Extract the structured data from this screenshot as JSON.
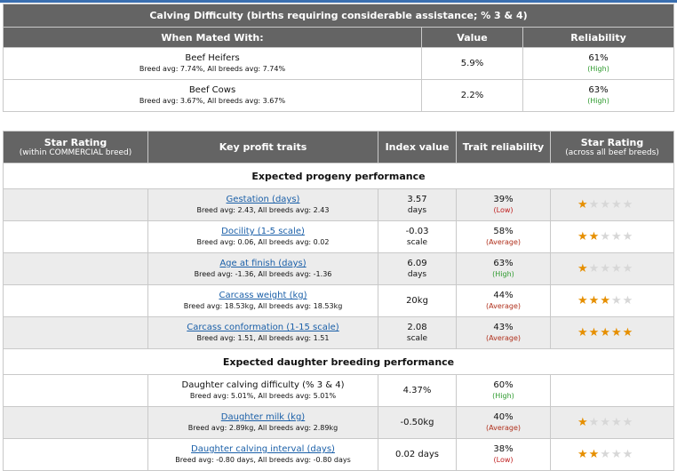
{
  "calving": {
    "title": "Calving Difficulty (births requiring considerable assistance; % 3 & 4)",
    "col_mated": "When Mated With:",
    "col_value": "Value",
    "col_reliability": "Reliability",
    "rows": [
      {
        "name": "Beef Heifers",
        "sub": "Breed avg: 7.74%, All breeds avg: 7.74%",
        "value": "5.9%",
        "rel": "61%",
        "rel_q": "(High)"
      },
      {
        "name": "Beef Cows",
        "sub": "Breed avg: 3.67%, All breeds avg: 3.67%",
        "value": "2.2%",
        "rel": "63%",
        "rel_q": "(High)"
      }
    ]
  },
  "traits": {
    "h_star": "Star Rating",
    "h_star_sub": "(within COMMERCIAL breed)",
    "h_key": "Key profit traits",
    "h_index": "Index value",
    "h_trait_rel": "Trait reliability",
    "h_star2": "Star Rating",
    "h_star2_sub": "(across all beef breeds)",
    "section_progeny": "Expected progeny performance",
    "section_daughter": "Expected daughter breeding performance",
    "rows": [
      {
        "name": "Gestation (days)",
        "sub": "Breed avg: 2.43, All breeds avg: 2.43",
        "val": "3.57",
        "unit": "days",
        "rel": "39%",
        "rel_q": "(Low)",
        "stars": 1
      },
      {
        "name": "Docility (1-5 scale)",
        "sub": "Breed avg: 0.06, All breeds avg: 0.02",
        "val": "-0.03",
        "unit": "scale",
        "rel": "58%",
        "rel_q": "(Average)",
        "stars": 2
      },
      {
        "name": "Age at finish (days)",
        "sub": "Breed avg: -1.36, All breeds avg: -1.36",
        "val": "6.09",
        "unit": "days",
        "rel": "63%",
        "rel_q": "(High)",
        "stars": 1
      },
      {
        "name": "Carcass weight (kg)",
        "sub": "Breed avg: 18.53kg, All breeds avg: 18.53kg",
        "val": "20kg",
        "unit": "",
        "rel": "44%",
        "rel_q": "(Average)",
        "stars": 3
      },
      {
        "name": "Carcass conformation (1-15 scale)",
        "sub": "Breed avg: 1.51, All breeds avg: 1.51",
        "val": "2.08",
        "unit": "scale",
        "rel": "43%",
        "rel_q": "(Average)",
        "stars": 5
      },
      {
        "name": "Daughter calving difficulty (% 3 & 4)",
        "sub": "Breed avg: 5.01%, All breeds avg: 5.01%",
        "val": "4.37%",
        "unit": "",
        "rel": "60%",
        "rel_q": "(High)",
        "stars": 0
      },
      {
        "name": "Daughter milk (kg)",
        "sub": "Breed avg: 2.89kg, All breeds avg: 2.89kg",
        "val": "-0.50kg",
        "unit": "",
        "rel": "40%",
        "rel_q": "(Average)",
        "stars": 1
      },
      {
        "name": "Daughter calving interval (days)",
        "sub": "Breed avg: -0.80 days, All breeds avg: -0.80 days",
        "val": "0.02 days",
        "unit": "",
        "rel": "38%",
        "rel_q": "(Low)",
        "stars": 2
      }
    ]
  }
}
